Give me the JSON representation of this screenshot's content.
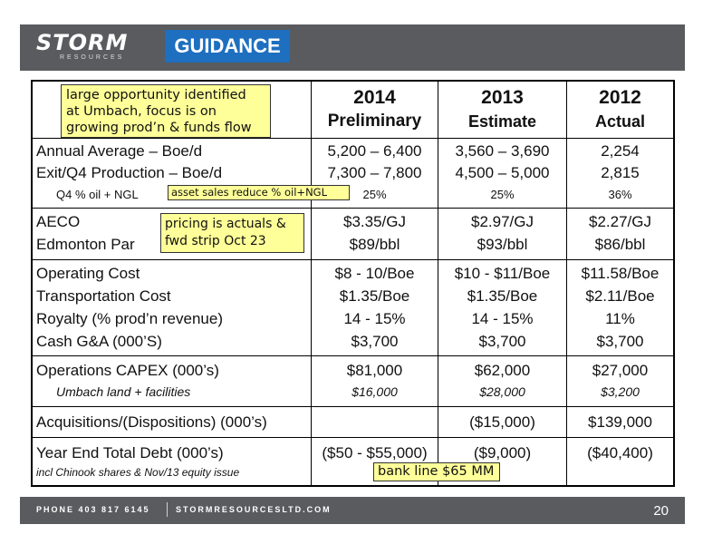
{
  "header": {
    "logo_word": "STORM",
    "logo_sub": "RESOURCES",
    "title": "GUIDANCE"
  },
  "columns": [
    {
      "year": "2014",
      "sub": "Preliminary"
    },
    {
      "year": "2013",
      "sub": "Estimate"
    },
    {
      "year": "2012",
      "sub": "Actual"
    }
  ],
  "rows": {
    "annual_avg": {
      "label": "Annual Average – Boe/d",
      "values": [
        "5,200 – 6,400",
        "3,560 – 3,690",
        "2,254"
      ]
    },
    "exit_q4": {
      "label": "Exit/Q4 Production – Boe/d",
      "values": [
        "7,300 – 7,800",
        "4,500 – 5,000",
        "2,815"
      ]
    },
    "q4_oil": {
      "label": "Q4 % oil + NGL",
      "values": [
        "25%",
        "25%",
        "36%"
      ]
    },
    "aeco": {
      "label": "AECO",
      "values": [
        "$3.35/GJ",
        "$2.97/GJ",
        "$2.27/GJ"
      ]
    },
    "edmonton": {
      "label": "Edmonton Par",
      "values": [
        "$89/bbl",
        "$93/bbl",
        "$86/bbl"
      ]
    },
    "op_cost": {
      "label": "Operating Cost",
      "values": [
        "$8 - 10/Boe",
        "$10 - $11/Boe",
        "$11.58/Boe"
      ]
    },
    "transport": {
      "label": "Transportation Cost",
      "values": [
        "$1.35/Boe",
        "$1.35/Boe",
        "$2.11/Boe"
      ]
    },
    "royalty": {
      "label": "Royalty (% prod’n revenue)",
      "values": [
        "14 - 15%",
        "14 - 15%",
        "11%"
      ]
    },
    "cash_ga": {
      "label": "Cash G&A (000’S)",
      "values": [
        "$3,700",
        "$3,700",
        "$3,700"
      ]
    },
    "capex": {
      "label": "Operations CAPEX (000’s)",
      "values": [
        "$81,000",
        "$62,000",
        "$27,000"
      ]
    },
    "umbach": {
      "label": "Umbach land + facilities",
      "values": [
        "$16,000",
        "$28,000",
        "$3,200"
      ]
    },
    "acq": {
      "label": "Acquisitions/(Dispositions) (000’s)",
      "values": [
        "",
        "($15,000)",
        "$139,000"
      ]
    },
    "debt": {
      "label": "Year End Total Debt (000’s)",
      "values": [
        "($50 - $55,000)",
        "($9,000)",
        "($40,400)"
      ]
    },
    "debt_note": {
      "label": "incl Chinook shares & Nov/13 equity issue"
    }
  },
  "notes": {
    "umbach": [
      "large opportunity identified",
      "at Umbach, focus is on",
      "growing prod’n & funds flow"
    ],
    "asset_sales": "asset sales reduce % oil+NGL",
    "pricing": [
      "pricing is actuals &",
      "fwd strip Oct 23"
    ],
    "bank_line": "bank line $65 MM"
  },
  "footer": {
    "phone": "PHONE 403 817 6145",
    "website": "STORMRESOURCESLTD.COM",
    "page_number": "20"
  }
}
